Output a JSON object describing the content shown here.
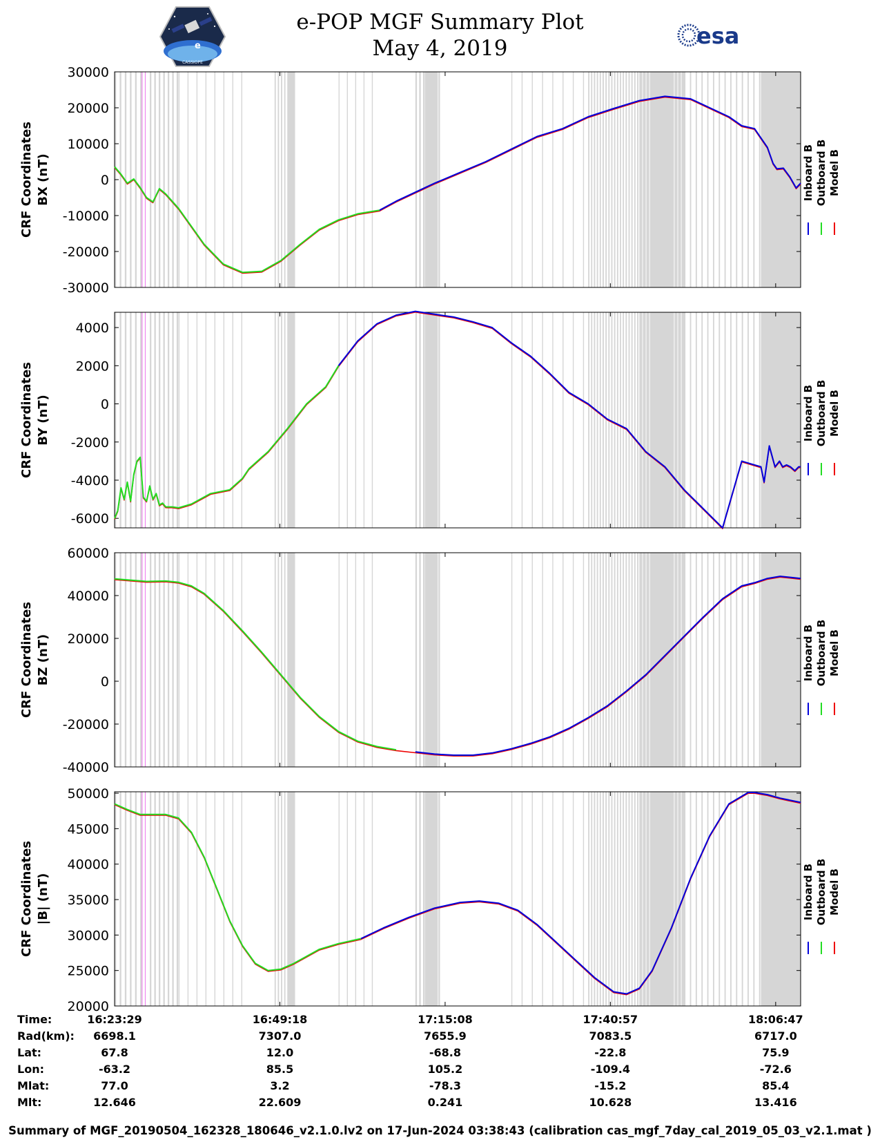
{
  "header": {
    "title": "e-POP MGF Summary Plot",
    "date": "May 4, 2019",
    "esa_logo_text": "esa",
    "cassiope_logo_text": "CASSIOPE",
    "epop_logo_text": "e"
  },
  "colors": {
    "inboard": "#0000dd",
    "outboard": "#22dd22",
    "model": "#ee0000",
    "gap_band": "#d6d6d6",
    "marker": "#ee88ee"
  },
  "chart_data": [
    {
      "type": "line",
      "ylabel_line1": "CRF Coordinates",
      "ylabel_line2": "BX (nT)",
      "ylim": [
        -30000,
        30000
      ],
      "yticks": [
        30000,
        20000,
        10000,
        0,
        -10000,
        -20000,
        -30000
      ],
      "ytick_labels": [
        "30000",
        "20000",
        "10000",
        "0",
        "-10000",
        "-20000",
        "-30000"
      ],
      "switch_minutes": 41.4,
      "x_minutes": [
        0,
        1,
        2,
        3,
        4,
        5,
        6,
        7,
        8,
        10,
        12,
        14,
        17,
        20,
        23,
        26,
        29,
        32,
        35,
        38,
        41.4,
        44,
        47,
        50,
        54,
        58,
        62,
        66,
        70,
        74,
        78,
        82,
        86,
        90,
        93,
        96,
        98,
        100,
        102,
        102.9,
        103.5,
        104.5,
        105.5,
        106.5,
        107.2
      ],
      "values": [
        3600,
        1500,
        -1000,
        200,
        -2200,
        -5000,
        -6200,
        -2500,
        -4000,
        -8000,
        -13000,
        -18000,
        -23500,
        -25800,
        -25500,
        -22500,
        -18000,
        -13800,
        -11200,
        -9500,
        -8500,
        -6000,
        -3500,
        -1000,
        2000,
        5000,
        8500,
        12000,
        14200,
        17500,
        19800,
        22000,
        23200,
        22500,
        20000,
        17500,
        15000,
        14200,
        9000,
        4500,
        3000,
        3200,
        800,
        -2300,
        -1000
      ]
    },
    {
      "type": "line",
      "ylabel_line1": "CRF Coordinates",
      "ylabel_line2": "BY (nT)",
      "ylim": [
        -6500,
        4800
      ],
      "yticks": [
        4000,
        2000,
        0,
        -2000,
        -4000,
        -6000
      ],
      "ytick_labels": [
        "4000",
        "2000",
        "0",
        "-2000",
        "-4000",
        "-6000"
      ],
      "switch_minutes": 35.0,
      "x_minutes": [
        0,
        0.5,
        1,
        1.5,
        2,
        2.5,
        3,
        3.5,
        4,
        4.5,
        5,
        5.5,
        6,
        6.5,
        7,
        7.5,
        8,
        9,
        10,
        12,
        15,
        18,
        20,
        21,
        24,
        27,
        30,
        33,
        35,
        38,
        41,
        44,
        47,
        50,
        53,
        56,
        59,
        62,
        65,
        68,
        71,
        74,
        77,
        80,
        83,
        86,
        89,
        92,
        95,
        98,
        100,
        101,
        101.5,
        102.3,
        103.2,
        103.9,
        104.4,
        105,
        105.6,
        106.3,
        106.9,
        107.2
      ],
      "values": [
        -6000,
        -5600,
        -4400,
        -5000,
        -4100,
        -5100,
        -3700,
        -3000,
        -2800,
        -4900,
        -5100,
        -4300,
        -5000,
        -4700,
        -5300,
        -5200,
        -5400,
        -5400,
        -5450,
        -5250,
        -4700,
        -4500,
        -3900,
        -3400,
        -2500,
        -1300,
        0,
        900,
        2000,
        3300,
        4200,
        4650,
        4850,
        4700,
        4550,
        4300,
        4000,
        3200,
        2500,
        1600,
        600,
        0,
        -800,
        -1300,
        -2500,
        -3300,
        -4500,
        -5500,
        -6500,
        -3000,
        -3200,
        -3300,
        -4100,
        -2200,
        -3300,
        -3000,
        -3300,
        -3200,
        -3300,
        -3500,
        -3300,
        -3300
      ]
    },
    {
      "type": "line",
      "ylabel_line1": "CRF Coordinates",
      "ylabel_line2": "BZ (nT)",
      "ylim": [
        -40000,
        60000
      ],
      "yticks": [
        60000,
        40000,
        20000,
        0,
        -20000,
        -40000
      ],
      "ytick_labels": [
        "60000",
        "40000",
        "20000",
        "0",
        "-20000",
        "-40000"
      ],
      "switch_minutes": 46.4,
      "x_minutes": [
        0,
        5,
        8,
        10,
        12,
        14,
        17,
        20,
        23,
        26,
        29,
        32,
        35,
        38,
        41,
        44,
        47,
        50,
        53,
        56,
        59,
        62,
        65,
        68,
        71,
        74,
        77,
        80,
        83,
        86,
        89,
        92,
        95,
        98,
        100,
        102,
        104,
        107.2
      ],
      "values": [
        47800,
        46600,
        46800,
        46200,
        44500,
        41000,
        33000,
        23500,
        13500,
        3000,
        -7500,
        -16500,
        -23500,
        -28000,
        -30500,
        -32000,
        -33000,
        -34000,
        -34500,
        -34500,
        -33500,
        -31500,
        -29000,
        -26000,
        -22000,
        -17000,
        -11500,
        -4500,
        3000,
        12000,
        21000,
        30000,
        38500,
        44500,
        46000,
        48000,
        49000,
        48000
      ]
    },
    {
      "type": "line",
      "ylabel_line1": "CRF Coordinates",
      "ylabel_line2": "|B| (nT)",
      "ylim": [
        20000,
        50200
      ],
      "yticks": [
        50000,
        45000,
        40000,
        35000,
        30000,
        25000,
        20000
      ],
      "ytick_labels": [
        "50000",
        "45000",
        "40000",
        "35000",
        "30000",
        "25000",
        "20000"
      ],
      "switch_minutes": 38.5,
      "x_minutes": [
        0,
        2,
        4,
        6,
        8,
        10,
        12,
        14,
        16,
        18,
        20,
        22,
        24,
        26,
        28,
        30,
        32,
        35,
        38.5,
        42,
        46,
        50,
        54,
        57,
        60,
        63,
        66,
        69,
        72,
        75,
        78,
        80,
        82,
        84,
        87,
        90,
        93,
        96,
        99,
        100,
        102,
        104,
        107.2
      ],
      "values": [
        48500,
        47700,
        47000,
        47000,
        47000,
        46500,
        44500,
        41000,
        36500,
        32000,
        28500,
        26000,
        25000,
        25200,
        26000,
        27000,
        28000,
        28800,
        29500,
        31000,
        32500,
        33800,
        34600,
        34800,
        34500,
        33500,
        31500,
        29000,
        26500,
        24000,
        22000,
        21700,
        22500,
        25000,
        31000,
        38000,
        44000,
        48500,
        50100,
        50100,
        49800,
        49300,
        48700
      ]
    }
  ],
  "legend": {
    "inboard": "Inboard B",
    "outboard": "Outboard B",
    "model": "Model B"
  },
  "table": {
    "row_labels": [
      "Time:",
      "Rad(km):",
      "Lat:",
      "Lon:",
      "Mlat:",
      "Mlt:"
    ],
    "columns": [
      {
        "time": "16:23:29",
        "rad": "6698.1",
        "lat": "67.8",
        "lon": "-63.2",
        "mlat": "77.0",
        "mlt": "12.646"
      },
      {
        "time": "16:49:18",
        "rad": "7307.0",
        "lat": "12.0",
        "lon": "85.5",
        "mlat": "3.2",
        "mlt": "22.609"
      },
      {
        "time": "17:15:08",
        "rad": "7655.9",
        "lat": "-68.8",
        "lon": "105.2",
        "mlat": "-78.3",
        "mlt": "0.241"
      },
      {
        "time": "17:40:57",
        "rad": "7083.5",
        "lat": "-22.8",
        "lon": "-109.4",
        "mlat": "-15.2",
        "mlt": "10.628"
      },
      {
        "time": "18:06:47",
        "rad": "6717.0",
        "lat": "75.9",
        "lon": "-72.6",
        "mlat": "85.4",
        "mlt": "13.416"
      }
    ]
  },
  "footer": "Summary of MGF_20190504_162328_180646_v2.1.0.lv2 on 17-Jun-2024 03:38:43 (calibration cas_mgf_7day_cal_2019_05_03_v2.1.mat )"
}
